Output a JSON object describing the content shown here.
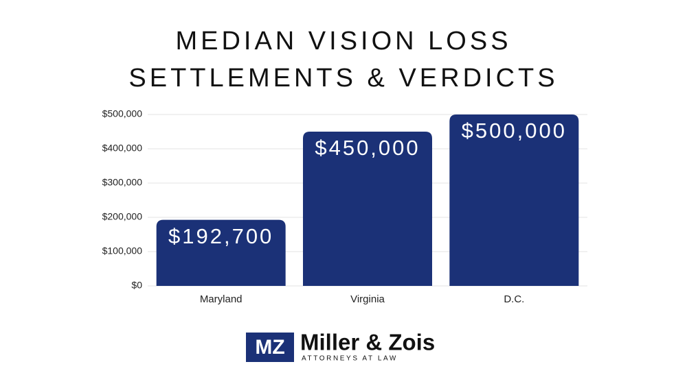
{
  "chart_data": {
    "type": "bar",
    "title": [
      "MEDIAN VISION LOSS",
      "SETTLEMENTS & VERDICTS"
    ],
    "categories": [
      "Maryland",
      "Virginia",
      "D.C."
    ],
    "values": [
      192700,
      450000,
      500000
    ],
    "value_labels": [
      "$192,700",
      "$450,000",
      "$500,000"
    ],
    "color": "#1b3177",
    "ylim": [
      0,
      500000
    ],
    "yticks": [
      {
        "value": 0,
        "label": "$0"
      },
      {
        "value": 100000,
        "label": "$100,000"
      },
      {
        "value": 200000,
        "label": "$200,000"
      },
      {
        "value": 300000,
        "label": "$300,000"
      },
      {
        "value": 400000,
        "label": "$400,000"
      },
      {
        "value": 500000,
        "label": "$500,000"
      }
    ],
    "grid": true
  },
  "logo": {
    "mark": "MZ",
    "name": "Miller & Zois",
    "tagline": "ATTORNEYS AT LAW"
  }
}
